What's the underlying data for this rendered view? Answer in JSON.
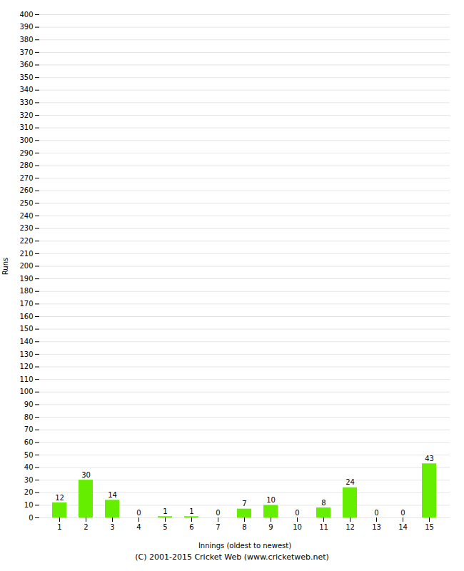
{
  "chart_data": {
    "type": "bar",
    "categories": [
      "1",
      "2",
      "3",
      "4",
      "5",
      "6",
      "7",
      "8",
      "9",
      "10",
      "11",
      "12",
      "13",
      "14",
      "15"
    ],
    "values": [
      12,
      30,
      14,
      0,
      1,
      1,
      0,
      7,
      10,
      0,
      8,
      24,
      0,
      0,
      43
    ],
    "color": "#66ee00",
    "xlabel": "Innings (oldest to newest)",
    "ylabel": "Runs",
    "ylim": [
      0,
      400
    ],
    "yticks": [
      0,
      10,
      20,
      30,
      40,
      50,
      60,
      70,
      80,
      90,
      100,
      110,
      120,
      130,
      140,
      150,
      160,
      170,
      180,
      190,
      200,
      210,
      220,
      230,
      240,
      250,
      260,
      270,
      280,
      290,
      300,
      310,
      320,
      330,
      340,
      350,
      360,
      370,
      380,
      390,
      400
    ],
    "grid": true,
    "data_labels": true,
    "annotations": [
      "(C) 2001-2015 Cricket Web (www.cricketweb.net)"
    ]
  }
}
